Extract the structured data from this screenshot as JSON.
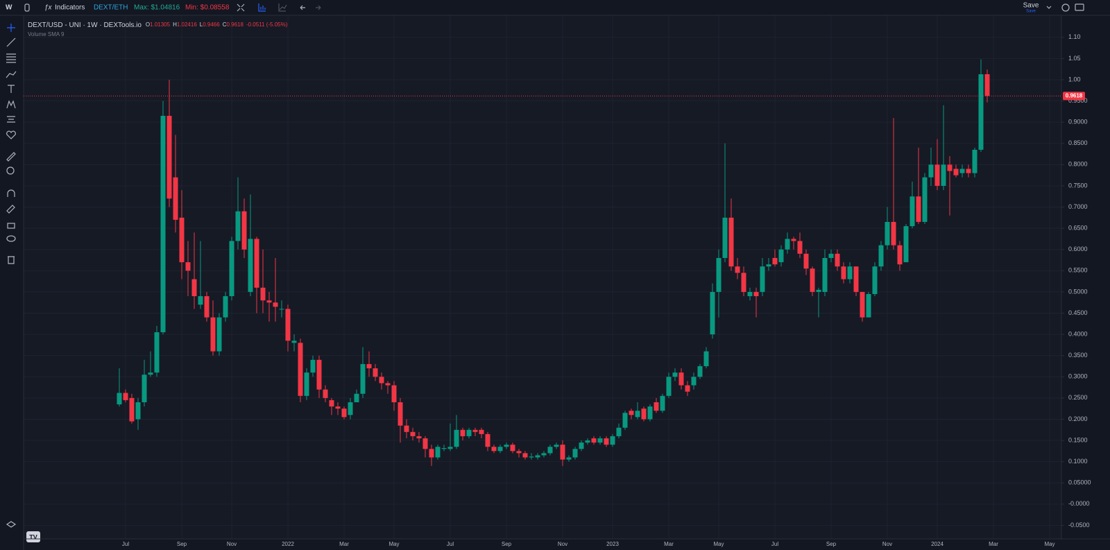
{
  "toolbar": {
    "symbol": "W",
    "indicators": "Indicators",
    "pair": "DEXT/ETH",
    "max": "Max: $1.04816",
    "min": "Min: $0.08558",
    "save": "Save",
    "save_sub": "Save"
  },
  "legend": {
    "title": "DEXT/USD - UNI · 1W · DEXTools.io",
    "o": "O",
    "h": "H",
    "l": "L",
    "c": "C",
    "change": "-0.0511 (-5.05%)",
    "volume": "Volume SMA 9"
  },
  "chart_data": {
    "type": "candlestick",
    "up_color": "#089981",
    "down_color": "#f23645",
    "grid": true,
    "ylim": [
      -0.082,
      1.152
    ],
    "yticks": [
      {
        "value": 1.1,
        "label": "1.10"
      },
      1.05,
      {
        "value": 1,
        "label": "1.00"
      },
      {
        "value": 0.95,
        "label": "0.9500"
      },
      {
        "value": 0.9,
        "label": "0.9000"
      },
      {
        "value": 0.85,
        "label": "0.8500"
      },
      {
        "value": 0.8,
        "label": "0.8000"
      },
      {
        "value": 0.75,
        "label": "0.7500"
      },
      {
        "value": 0.7,
        "label": "0.7000"
      },
      {
        "value": 0.65,
        "label": "0.6500"
      },
      {
        "value": 0.6,
        "label": "0.6000"
      },
      {
        "value": 0.55,
        "label": "0.5500"
      },
      {
        "value": 0.5,
        "label": "0.5000"
      },
      {
        "value": 0.45,
        "label": "0.4500"
      },
      {
        "value": 0.4,
        "label": "0.4000"
      },
      {
        "value": 0.35,
        "label": "0.3500"
      },
      {
        "value": 0.3,
        "label": "0.3000"
      },
      {
        "value": 0.25,
        "label": "0.2500"
      },
      {
        "value": 0.2,
        "label": "0.2000"
      },
      {
        "value": 0.15,
        "label": "0.1500"
      },
      {
        "value": 0.1,
        "label": "0.1000"
      },
      {
        "value": 0.05,
        "label": "0.05000"
      },
      {
        "value": 0,
        "label": "-0.0000"
      },
      {
        "value": -0.05,
        "label": "-0.0500"
      }
    ],
    "categories": [
      null,
      "Jul",
      null,
      null,
      null,
      null,
      null,
      null,
      null,
      null,
      "Sep",
      null,
      null,
      null,
      null,
      null,
      null,
      null,
      "Nov",
      null,
      null,
      null,
      null,
      null,
      null,
      null,
      null,
      "2022",
      null,
      null,
      null,
      null,
      null,
      null,
      null,
      null,
      "Mar",
      null,
      null,
      null,
      null,
      null,
      null,
      null,
      "May",
      null,
      null,
      null,
      null,
      null,
      null,
      null,
      null,
      "Jul",
      null,
      null,
      null,
      null,
      null,
      null,
      null,
      null,
      "Sep",
      null,
      null,
      null,
      null,
      null,
      null,
      null,
      null,
      "Nov",
      null,
      null,
      null,
      null,
      null,
      null,
      null,
      "2023",
      null,
      null,
      null,
      null,
      null,
      null,
      null,
      null,
      "Mar",
      null,
      null,
      null,
      null,
      null,
      null,
      null,
      "May",
      null,
      null,
      null,
      null,
      null,
      null,
      null,
      null,
      "Jul",
      null,
      null,
      null,
      null,
      null,
      null,
      null,
      null,
      "Sep",
      null,
      null,
      null,
      null,
      null,
      null,
      null,
      null,
      "Nov",
      null,
      null,
      null,
      null,
      null,
      null,
      null,
      "2024",
      null,
      null,
      null,
      null,
      null,
      null,
      null,
      null,
      "Mar",
      null,
      null,
      null,
      null,
      null,
      null,
      null,
      null,
      "May",
      null,
      null
    ],
    "open": [
      0.235,
      0.262,
      0.25,
      0.2,
      0.24,
      0.305,
      0.31,
      0.405,
      0.915,
      0.77,
      0.675,
      0.57,
      0.53,
      0.47,
      0.49,
      0.44,
      0.36,
      0.44,
      0.49,
      0.62,
      0.69,
      0.5,
      0.625,
      0.51,
      0.48,
      0.475,
      0.46,
      0.46,
      0.38,
      0.38,
      0.255,
      0.31,
      0.34,
      0.27,
      0.245,
      0.23,
      0.225,
      0.21,
      0.24,
      0.26,
      0.33,
      0.32,
      0.3,
      0.285,
      0.28,
      0.24,
      0.185,
      0.17,
      0.16,
      0.155,
      0.13,
      0.11,
      0.13,
      0.13,
      0.135,
      0.175,
      0.16,
      0.175,
      0.175,
      0.165,
      0.135,
      0.125,
      0.135,
      0.14,
      0.125,
      0.12,
      0.11,
      0.11,
      0.115,
      0.12,
      0.135,
      0.14,
      0.105,
      0.11,
      0.13,
      0.145,
      0.155,
      0.145,
      0.155,
      0.14,
      0.16,
      0.18,
      0.22,
      0.205,
      0.225,
      0.2,
      0.24,
      0.22,
      0.255,
      0.3,
      0.31,
      0.28,
      0.28,
      0.3,
      0.325,
      0.4,
      0.5,
      0.58,
      0.675,
      0.56,
      0.545,
      0.49,
      0.5,
      0.5,
      0.56,
      0.58,
      0.57,
      0.6,
      0.625,
      0.62,
      0.59,
      0.555,
      0.5,
      0.5,
      0.58,
      0.59,
      0.56,
      0.53,
      0.56,
      0.5,
      0.44,
      0.495,
      0.56,
      0.61,
      0.665,
      0.61,
      0.57,
      0.655,
      0.725,
      0.665,
      0.77,
      0.8,
      0.75,
      0.8,
      0.79,
      0.78,
      0.79,
      0.78,
      0.835,
      1.01305,
      null,
      null,
      null,
      null,
      null,
      null,
      null,
      null,
      null,
      null,
      null,
      null
    ],
    "high": [
      0.32,
      0.27,
      0.26,
      0.25,
      0.34,
      0.36,
      0.42,
      0.95,
      1.0,
      0.87,
      0.74,
      0.62,
      0.64,
      0.62,
      0.5,
      0.48,
      0.45,
      0.5,
      0.63,
      0.77,
      0.72,
      0.73,
      0.63,
      0.6,
      0.5,
      0.58,
      0.48,
      0.47,
      0.4,
      0.39,
      0.32,
      0.35,
      0.35,
      0.28,
      0.25,
      0.24,
      0.23,
      0.25,
      0.27,
      0.37,
      0.36,
      0.33,
      0.31,
      0.29,
      0.29,
      0.25,
      0.2,
      0.18,
      0.17,
      0.16,
      0.14,
      0.14,
      0.14,
      0.19,
      0.21,
      0.18,
      0.18,
      0.18,
      0.18,
      0.17,
      0.14,
      0.14,
      0.145,
      0.145,
      0.13,
      0.125,
      0.12,
      0.12,
      0.125,
      0.14,
      0.145,
      0.15,
      0.115,
      0.135,
      0.15,
      0.155,
      0.16,
      0.16,
      0.16,
      0.165,
      0.19,
      0.22,
      0.225,
      0.24,
      0.23,
      0.235,
      0.25,
      0.26,
      0.31,
      0.32,
      0.32,
      0.29,
      0.31,
      0.33,
      0.37,
      0.52,
      0.6,
      0.85,
      0.72,
      0.58,
      0.56,
      0.51,
      0.51,
      0.58,
      0.58,
      0.6,
      0.61,
      0.64,
      0.63,
      0.64,
      0.6,
      0.56,
      0.51,
      0.6,
      0.6,
      0.6,
      0.57,
      0.57,
      0.56,
      0.5,
      0.5,
      0.57,
      0.62,
      0.7,
      0.91,
      0.62,
      0.66,
      0.76,
      0.84,
      0.78,
      0.84,
      0.86,
      0.94,
      0.82,
      0.8,
      0.8,
      0.8,
      0.84,
      1.048,
      1.02416,
      null,
      null,
      null,
      null,
      null,
      null,
      null,
      null,
      null,
      null,
      null,
      null
    ],
    "low": [
      0.23,
      0.24,
      0.19,
      0.175,
      0.23,
      0.3,
      0.3,
      0.4,
      0.7,
      0.64,
      0.53,
      0.49,
      0.46,
      0.46,
      0.43,
      0.35,
      0.35,
      0.43,
      0.48,
      0.6,
      0.58,
      0.49,
      0.45,
      0.45,
      0.43,
      0.43,
      0.44,
      0.36,
      0.36,
      0.24,
      0.245,
      0.3,
      0.25,
      0.24,
      0.21,
      0.21,
      0.2,
      0.2,
      0.24,
      0.25,
      0.3,
      0.29,
      0.27,
      0.26,
      0.22,
      0.145,
      0.155,
      0.15,
      0.145,
      0.11,
      0.09,
      0.105,
      0.125,
      0.125,
      0.13,
      0.15,
      0.155,
      0.16,
      0.155,
      0.125,
      0.12,
      0.12,
      0.13,
      0.12,
      0.11,
      0.105,
      0.105,
      0.105,
      0.11,
      0.115,
      0.13,
      0.09,
      0.1,
      0.105,
      0.125,
      0.14,
      0.14,
      0.14,
      0.135,
      0.135,
      0.155,
      0.175,
      0.2,
      0.2,
      0.195,
      0.195,
      0.215,
      0.215,
      0.25,
      0.29,
      0.27,
      0.255,
      0.27,
      0.295,
      0.32,
      0.39,
      0.44,
      0.57,
      0.55,
      0.53,
      0.49,
      0.48,
      0.44,
      0.49,
      0.55,
      0.56,
      0.56,
      0.59,
      0.6,
      0.58,
      0.54,
      0.49,
      0.44,
      0.49,
      0.57,
      0.55,
      0.52,
      0.52,
      0.49,
      0.43,
      0.44,
      0.49,
      0.55,
      0.6,
      0.6,
      0.55,
      0.57,
      0.65,
      0.66,
      0.66,
      0.75,
      0.74,
      0.74,
      0.68,
      0.77,
      0.77,
      0.77,
      0.77,
      0.83,
      0.9466,
      null,
      null,
      null,
      null,
      null,
      null,
      null,
      null,
      null,
      null,
      null,
      null
    ],
    "close": [
      0.262,
      0.245,
      0.195,
      0.24,
      0.305,
      0.31,
      0.405,
      0.915,
      0.72,
      0.67,
      0.57,
      0.55,
      0.49,
      0.49,
      0.44,
      0.36,
      0.44,
      0.49,
      0.62,
      0.69,
      0.6,
      0.625,
      0.51,
      0.48,
      0.475,
      0.465,
      0.46,
      0.385,
      0.385,
      0.255,
      0.31,
      0.34,
      0.27,
      0.25,
      0.23,
      0.225,
      0.205,
      0.24,
      0.26,
      0.33,
      0.32,
      0.3,
      0.285,
      0.28,
      0.24,
      0.185,
      0.17,
      0.16,
      0.155,
      0.13,
      0.11,
      0.135,
      0.132,
      0.135,
      0.175,
      0.16,
      0.175,
      0.17,
      0.165,
      0.135,
      0.125,
      0.135,
      0.14,
      0.125,
      0.12,
      0.11,
      0.112,
      0.115,
      0.12,
      0.135,
      0.14,
      0.105,
      0.11,
      0.13,
      0.145,
      0.15,
      0.145,
      0.155,
      0.14,
      0.16,
      0.18,
      0.215,
      0.21,
      0.22,
      0.2,
      0.23,
      0.22,
      0.255,
      0.3,
      0.31,
      0.28,
      0.265,
      0.3,
      0.325,
      0.36,
      0.5,
      0.58,
      0.675,
      0.56,
      0.545,
      0.5,
      0.5,
      0.49,
      0.56,
      0.565,
      0.565,
      0.6,
      0.625,
      0.62,
      0.59,
      0.555,
      0.5,
      0.505,
      0.58,
      0.59,
      0.56,
      0.53,
      0.56,
      0.5,
      0.44,
      0.495,
      0.56,
      0.61,
      0.665,
      0.61,
      0.565,
      0.655,
      0.725,
      0.665,
      0.77,
      0.8,
      0.75,
      0.8,
      0.785,
      0.775,
      0.79,
      0.78,
      0.835,
      1.013,
      0.9618,
      null,
      null,
      null,
      null,
      null,
      null,
      null,
      null,
      null,
      null,
      null,
      null
    ]
  }
}
